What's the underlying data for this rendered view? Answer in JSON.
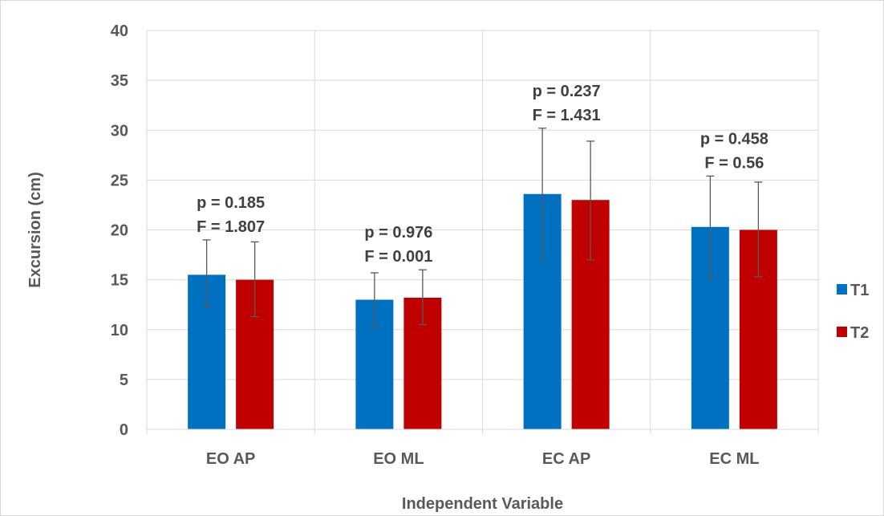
{
  "chart_data": {
    "type": "bar",
    "title": "",
    "xlabel": "Independent Variable",
    "ylabel": "Excursion (cm)",
    "ylim": [
      0,
      40
    ],
    "yticks": [
      0,
      5,
      10,
      15,
      20,
      25,
      30,
      35,
      40
    ],
    "categories": [
      "EO AP",
      "EO ML",
      "EC AP",
      "EC ML"
    ],
    "grid": true,
    "legend_position": "right",
    "series": [
      {
        "name": "T1",
        "color": "#0070C0",
        "values": [
          15.5,
          13.0,
          23.6,
          20.3
        ],
        "error_high": [
          19.0,
          15.7,
          30.2,
          25.4
        ],
        "error_low": [
          12.2,
          10.3,
          17.0,
          15.2
        ]
      },
      {
        "name": "T2",
        "color": "#C00000",
        "values": [
          15.0,
          13.2,
          23.0,
          20.0
        ],
        "error_high": [
          18.8,
          16.0,
          28.9,
          24.8
        ],
        "error_low": [
          11.3,
          10.5,
          17.0,
          15.3
        ]
      }
    ],
    "annotations": [
      {
        "category": "EO AP",
        "line1": "p = 0.185",
        "line2": "F = 1.807"
      },
      {
        "category": "EO ML",
        "line1": "p = 0.976",
        "line2": "F = 0.001"
      },
      {
        "category": "EC AP",
        "line1": "p = 0.237",
        "line2": "F = 1.431"
      },
      {
        "category": "EC ML",
        "line1": "p = 0.458",
        "line2": "F = 0.56"
      }
    ]
  }
}
